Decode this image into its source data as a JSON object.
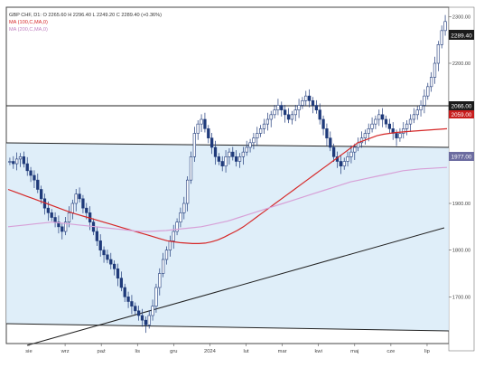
{
  "legend": {
    "line1": "GBP CHF, D1: O 2265.60  H 2296.40  L 2249.20  C 2289.40  (+0.36%)",
    "line2": "MA (100,C,MA,0)",
    "line3": "MA (200,C,MA,0)"
  },
  "colors": {
    "candle": "#1f3a7a",
    "ma100": "#d62828",
    "ma200": "#d7a0d7",
    "channel_fill": "#dcecf8",
    "price_tag": "#1b1b1b",
    "ma100_tag": "#c81e1e",
    "ma200_tag": "#6c6ca0"
  },
  "chart_data": {
    "type": "candlestick",
    "y_ticks": [
      "2300.00",
      "2200.00",
      "2100.00",
      "2000.00",
      "1900.00",
      "1800.00",
      "1700.00"
    ],
    "ylim": [
      1600,
      2320
    ],
    "x_ticks": [
      "sie",
      "wrz",
      "paź",
      "lis",
      "gru",
      "2024",
      "lut",
      "mar",
      "kwi",
      "maj",
      "cze",
      "lip"
    ],
    "price_labels": {
      "last_price": "2289.40",
      "ma100_value": "2059.80",
      "ma200_value": "1977.00"
    },
    "price_line_labels": [
      "2066.00",
      "2059.00"
    ],
    "close_series": [
      1990,
      1985,
      1995,
      2000,
      1985,
      1970,
      1960,
      1950,
      1930,
      1910,
      1890,
      1880,
      1870,
      1860,
      1850,
      1840,
      1860,
      1880,
      1900,
      1920,
      1910,
      1890,
      1880,
      1860,
      1840,
      1820,
      1800,
      1790,
      1780,
      1770,
      1760,
      1740,
      1720,
      1700,
      1690,
      1680,
      1670,
      1660,
      1650,
      1640,
      1660,
      1680,
      1720,
      1750,
      1780,
      1800,
      1820,
      1840,
      1860,
      1880,
      1900,
      1950,
      2000,
      2050,
      2070,
      2080,
      2060,
      2040,
      2020,
      2000,
      1990,
      1980,
      2000,
      2010,
      2000,
      1990,
      2000,
      2010,
      2020,
      2030,
      2040,
      2050,
      2060,
      2070,
      2080,
      2090,
      2100,
      2110,
      2100,
      2090,
      2080,
      2090,
      2100,
      2110,
      2120,
      2130,
      2120,
      2110,
      2100,
      2080,
      2060,
      2040,
      2020,
      2000,
      1990,
      1980,
      1990,
      2000,
      2010,
      2020,
      2030,
      2040,
      2050,
      2060,
      2070,
      2080,
      2090,
      2080,
      2070,
      2060,
      2050,
      2040,
      2050,
      2060,
      2070,
      2080,
      2090,
      2100,
      2110,
      2130,
      2150,
      2170,
      2200,
      2240,
      2270,
      2289.4
    ],
    "ma100": [
      1930,
      1925,
      1920,
      1915,
      1910,
      1905,
      1900,
      1895,
      1890,
      1885,
      1880,
      1876,
      1872,
      1868,
      1864,
      1860,
      1856,
      1852,
      1848,
      1844,
      1840,
      1836,
      1832,
      1828,
      1824,
      1820,
      1818,
      1816,
      1815,
      1814,
      1814,
      1815,
      1818,
      1822,
      1828,
      1835,
      1842,
      1850,
      1860,
      1870,
      1880,
      1890,
      1900,
      1910,
      1920,
      1930,
      1940,
      1950,
      1960,
      1970,
      1980,
      1990,
      2000,
      2010,
      2020,
      2030,
      2035,
      2040,
      2045,
      2048,
      2050,
      2052,
      2053,
      2054,
      2055,
      2056,
      2057,
      2058,
      2059,
      2059.8
    ],
    "ma200": [
      1850,
      1852,
      1854,
      1856,
      1858,
      1860,
      1858,
      1856,
      1854,
      1852,
      1850,
      1848,
      1846,
      1844,
      1842,
      1840,
      1840,
      1841,
      1842,
      1844,
      1846,
      1848,
      1850,
      1854,
      1858,
      1862,
      1868,
      1874,
      1880,
      1886,
      1892,
      1898,
      1904,
      1910,
      1916,
      1922,
      1928,
      1934,
      1940,
      1946,
      1950,
      1954,
      1958,
      1962,
      1966,
      1970,
      1972,
      1974,
      1975,
      1976,
      1977
    ]
  }
}
